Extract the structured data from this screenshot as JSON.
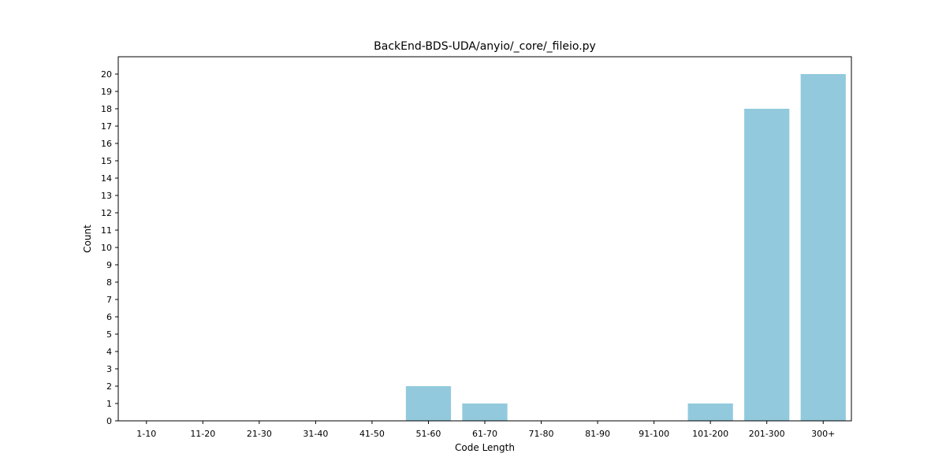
{
  "chart_data": {
    "type": "bar",
    "title": "BackEnd-BDS-UDA/anyio/_core/_fileio.py",
    "xlabel": "Code Length",
    "ylabel": "Count",
    "categories": [
      "1-10",
      "11-20",
      "21-30",
      "31-40",
      "41-50",
      "51-60",
      "61-70",
      "71-80",
      "81-90",
      "91-100",
      "101-200",
      "201-300",
      "300+"
    ],
    "values": [
      0,
      0,
      0,
      0,
      0,
      2,
      1,
      0,
      0,
      0,
      1,
      18,
      20
    ],
    "ylim": [
      0,
      21
    ],
    "yticks": [
      0,
      1,
      2,
      3,
      4,
      5,
      6,
      7,
      8,
      9,
      10,
      11,
      12,
      13,
      14,
      15,
      16,
      17,
      18,
      19,
      20
    ],
    "grid": false,
    "legend": "none",
    "bar_color": "#92c9dd"
  }
}
